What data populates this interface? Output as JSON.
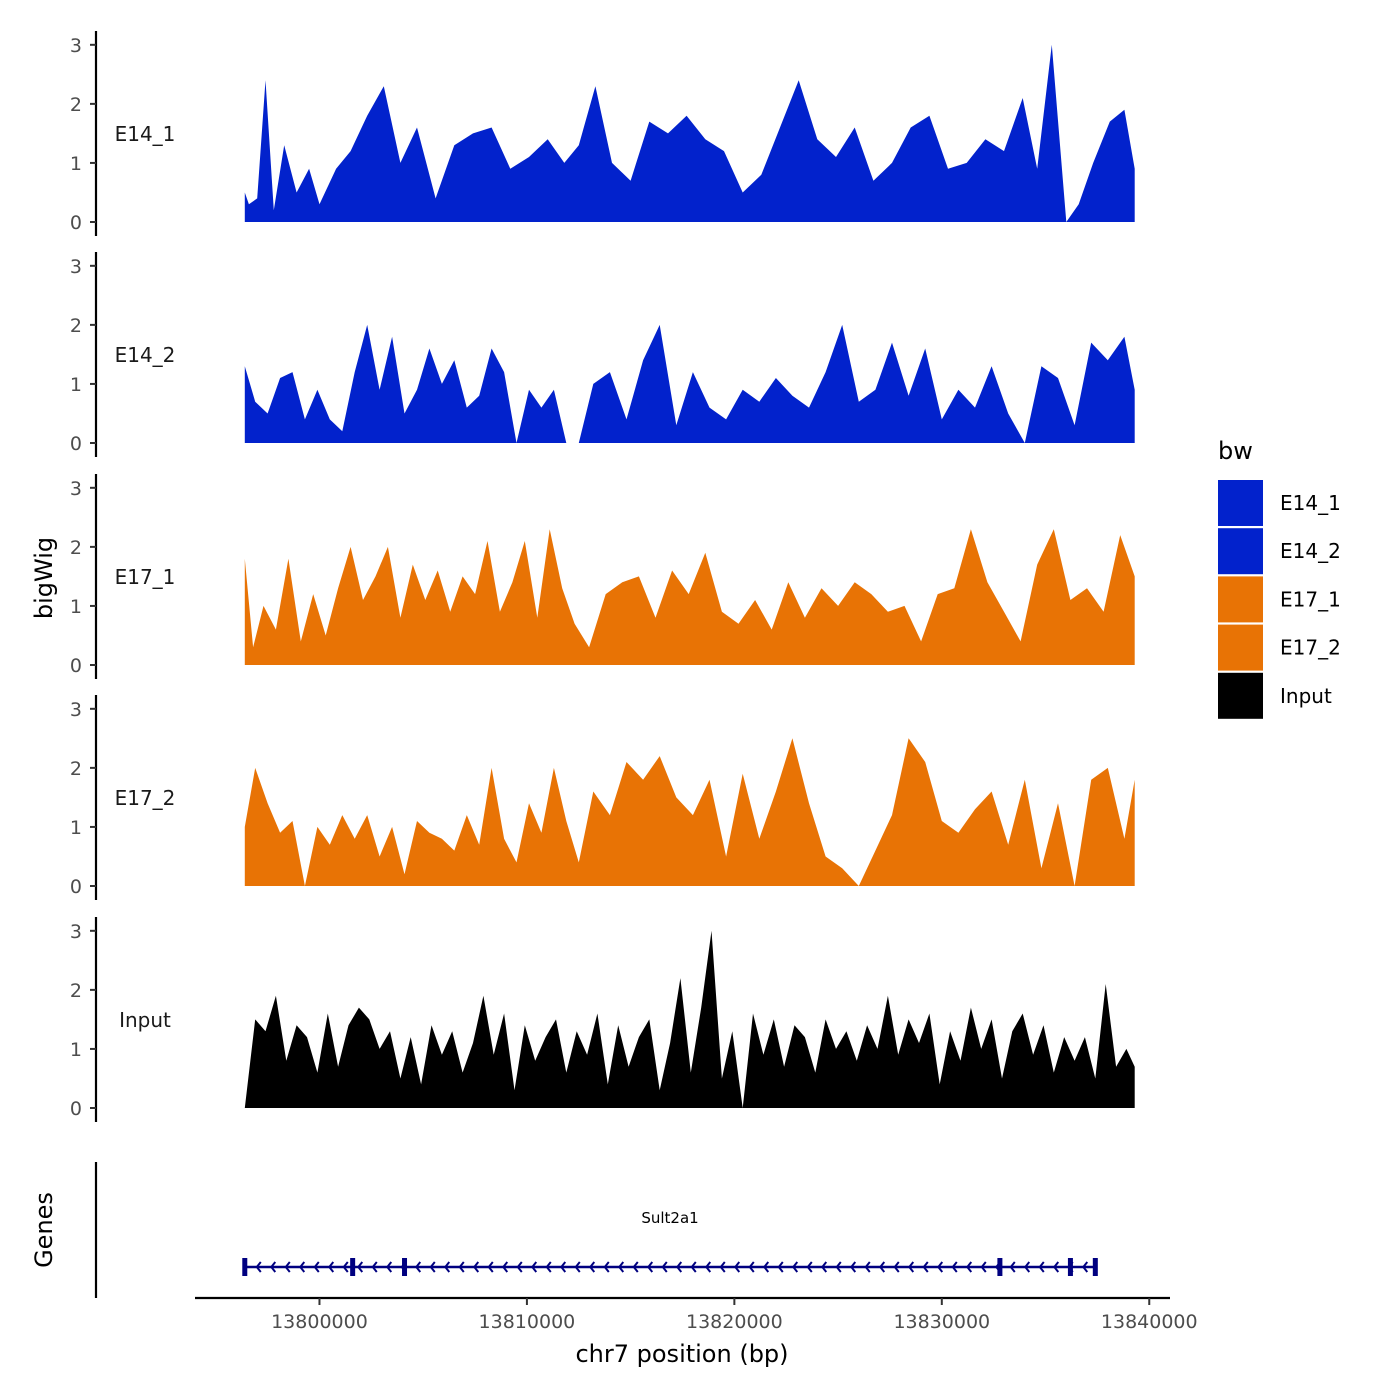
{
  "chart_data": {
    "type": "area",
    "chromosome": "chr7",
    "xlabel": "chr7 position (bp)",
    "ylabel": "bigWig",
    "genes_label": "Genes",
    "xlim": [
      13794000,
      13841000
    ],
    "x_ticks": [
      13800000,
      13810000,
      13820000,
      13830000,
      13840000
    ],
    "x_tick_labels": [
      "13800000",
      "13810000",
      "13820000",
      "13830000",
      "13840000"
    ],
    "ylim": [
      0,
      3.2
    ],
    "y_ticks": [
      0,
      1,
      2,
      3
    ],
    "y_tick_labels": [
      "0",
      "1",
      "2",
      "3"
    ],
    "legend": {
      "title": "bw",
      "entries": [
        {
          "label": "E14_1",
          "color": "#0222CC"
        },
        {
          "label": "E14_2",
          "color": "#0222CC"
        },
        {
          "label": "E17_1",
          "color": "#E87305"
        },
        {
          "label": "E17_2",
          "color": "#E87305"
        },
        {
          "label": "Input",
          "color": "#000000"
        }
      ]
    },
    "series": [
      {
        "name": "E14_1",
        "color": "#0222CC",
        "x": [
          13796400,
          13796600,
          13797000,
          13797400,
          13797800,
          13798300,
          13798900,
          13799500,
          13800000,
          13800800,
          13801500,
          13802300,
          13803100,
          13803900,
          13804700,
          13805600,
          13806500,
          13807400,
          13808300,
          13809200,
          13810100,
          13811000,
          13811800,
          13812500,
          13813300,
          13814100,
          13815000,
          13815900,
          13816800,
          13817700,
          13818600,
          13819500,
          13820400,
          13821300,
          13822200,
          13823100,
          13824000,
          13824900,
          13825800,
          13826700,
          13827600,
          13828500,
          13829400,
          13830300,
          13831200,
          13832100,
          13833000,
          13833900,
          13834600,
          13835300,
          13836000,
          13836600,
          13837300,
          13838100,
          13838800,
          13839300
        ],
        "y": [
          0.5,
          0.3,
          0.4,
          2.4,
          0.2,
          1.3,
          0.5,
          0.9,
          0.3,
          0.9,
          1.2,
          1.8,
          2.3,
          1.0,
          1.6,
          0.4,
          1.3,
          1.5,
          1.6,
          0.9,
          1.1,
          1.4,
          1.0,
          1.3,
          2.3,
          1.0,
          0.7,
          1.7,
          1.5,
          1.8,
          1.4,
          1.2,
          0.5,
          0.8,
          1.6,
          2.4,
          1.4,
          1.1,
          1.6,
          0.7,
          1.0,
          1.6,
          1.8,
          0.9,
          1.0,
          1.4,
          1.2,
          2.1,
          0.9,
          3.0,
          0.0,
          0.3,
          1.0,
          1.7,
          1.9,
          0.9
        ]
      },
      {
        "name": "E14_2",
        "color": "#0222CC",
        "x": [
          13796400,
          13796900,
          13797500,
          13798100,
          13798700,
          13799300,
          13799900,
          13800500,
          13801100,
          13801700,
          13802300,
          13802900,
          13803500,
          13804100,
          13804700,
          13805300,
          13805900,
          13806500,
          13807100,
          13807700,
          13808300,
          13808900,
          13809500,
          13810100,
          13810700,
          13811300,
          13811900,
          13812500,
          13813200,
          13814000,
          13814800,
          13815600,
          13816400,
          13817200,
          13818000,
          13818800,
          13819600,
          13820400,
          13821200,
          13822000,
          13822800,
          13823600,
          13824400,
          13825200,
          13826000,
          13826800,
          13827600,
          13828400,
          13829200,
          13830000,
          13830800,
          13831600,
          13832400,
          13833200,
          13834000,
          13834800,
          13835600,
          13836400,
          13837200,
          13838000,
          13838800,
          13839300
        ],
        "y": [
          1.3,
          0.7,
          0.5,
          1.1,
          1.2,
          0.4,
          0.9,
          0.4,
          0.2,
          1.2,
          2.0,
          0.9,
          1.8,
          0.5,
          0.9,
          1.6,
          1.0,
          1.4,
          0.6,
          0.8,
          1.6,
          1.2,
          0.0,
          0.9,
          0.6,
          0.9,
          0.0,
          0.0,
          1.0,
          1.2,
          0.4,
          1.4,
          2.0,
          0.3,
          1.2,
          0.6,
          0.4,
          0.9,
          0.7,
          1.1,
          0.8,
          0.6,
          1.2,
          2.0,
          0.7,
          0.9,
          1.7,
          0.8,
          1.6,
          0.4,
          0.9,
          0.6,
          1.3,
          0.5,
          0.0,
          1.3,
          1.1,
          0.3,
          1.7,
          1.4,
          1.8,
          0.9
        ]
      },
      {
        "name": "E17_1",
        "color": "#E87305",
        "x": [
          13796400,
          13796800,
          13797300,
          13797900,
          13798500,
          13799100,
          13799700,
          13800300,
          13800900,
          13801500,
          13802100,
          13802700,
          13803300,
          13803900,
          13804500,
          13805100,
          13805700,
          13806300,
          13806900,
          13807500,
          13808100,
          13808700,
          13809300,
          13809900,
          13810500,
          13811100,
          13811700,
          13812300,
          13813000,
          13813800,
          13814600,
          13815400,
          13816200,
          13817000,
          13817800,
          13818600,
          13819400,
          13820200,
          13821000,
          13821800,
          13822600,
          13823400,
          13824200,
          13825000,
          13825800,
          13826600,
          13827400,
          13828200,
          13829000,
          13829800,
          13830600,
          13831400,
          13832200,
          13833000,
          13833800,
          13834600,
          13835400,
          13836200,
          13837000,
          13837800,
          13838600,
          13839300
        ],
        "y": [
          1.8,
          0.3,
          1.0,
          0.6,
          1.8,
          0.4,
          1.2,
          0.5,
          1.3,
          2.0,
          1.1,
          1.5,
          2.0,
          0.8,
          1.7,
          1.1,
          1.6,
          0.9,
          1.5,
          1.2,
          2.1,
          0.9,
          1.4,
          2.1,
          0.8,
          2.3,
          1.3,
          0.7,
          0.3,
          1.2,
          1.4,
          1.5,
          0.8,
          1.6,
          1.2,
          1.9,
          0.9,
          0.7,
          1.1,
          0.6,
          1.4,
          0.8,
          1.3,
          1.0,
          1.4,
          1.2,
          0.9,
          1.0,
          0.4,
          1.2,
          1.3,
          2.3,
          1.4,
          0.9,
          0.4,
          1.7,
          2.3,
          1.1,
          1.3,
          0.9,
          2.2,
          1.5
        ]
      },
      {
        "name": "E17_2",
        "color": "#E87305",
        "x": [
          13796400,
          13796900,
          13797500,
          13798100,
          13798700,
          13799300,
          13799900,
          13800500,
          13801100,
          13801700,
          13802300,
          13802900,
          13803500,
          13804100,
          13804700,
          13805300,
          13805900,
          13806500,
          13807100,
          13807700,
          13808300,
          13808900,
          13809500,
          13810100,
          13810700,
          13811300,
          13811900,
          13812500,
          13813200,
          13814000,
          13814800,
          13815600,
          13816400,
          13817200,
          13818000,
          13818800,
          13819600,
          13820400,
          13821200,
          13822000,
          13822800,
          13823600,
          13824400,
          13825200,
          13826000,
          13826800,
          13827600,
          13828400,
          13829200,
          13830000,
          13830800,
          13831600,
          13832400,
          13833200,
          13834000,
          13834800,
          13835600,
          13836400,
          13837200,
          13838000,
          13838800,
          13839300
        ],
        "y": [
          1.0,
          2.0,
          1.4,
          0.9,
          1.1,
          0.0,
          1.0,
          0.7,
          1.2,
          0.8,
          1.2,
          0.5,
          1.0,
          0.2,
          1.1,
          0.9,
          0.8,
          0.6,
          1.2,
          0.7,
          2.0,
          0.8,
          0.4,
          1.4,
          0.9,
          2.0,
          1.1,
          0.4,
          1.6,
          1.2,
          2.1,
          1.8,
          2.2,
          1.5,
          1.2,
          1.8,
          0.5,
          1.9,
          0.8,
          1.6,
          2.5,
          1.4,
          0.5,
          0.3,
          0.0,
          0.6,
          1.2,
          2.5,
          2.1,
          1.1,
          0.9,
          1.3,
          1.6,
          0.7,
          1.8,
          0.3,
          1.4,
          0.0,
          1.8,
          2.0,
          0.8,
          1.8
        ]
      },
      {
        "name": "Input",
        "color": "#000000",
        "x": [
          13796400,
          13796900,
          13797400,
          13797900,
          13798400,
          13798900,
          13799400,
          13799900,
          13800400,
          13800900,
          13801400,
          13801900,
          13802400,
          13802900,
          13803400,
          13803900,
          13804400,
          13804900,
          13805400,
          13805900,
          13806400,
          13806900,
          13807400,
          13807900,
          13808400,
          13808900,
          13809400,
          13809900,
          13810400,
          13810900,
          13811400,
          13811900,
          13812400,
          13812900,
          13813400,
          13813900,
          13814400,
          13814900,
          13815400,
          13815900,
          13816400,
          13816900,
          13817400,
          13817900,
          13818400,
          13818900,
          13819400,
          13819900,
          13820400,
          13820900,
          13821400,
          13821900,
          13822400,
          13822900,
          13823400,
          13823900,
          13824400,
          13824900,
          13825400,
          13825900,
          13826400,
          13826900,
          13827400,
          13827900,
          13828400,
          13828900,
          13829400,
          13829900,
          13830400,
          13830900,
          13831400,
          13831900,
          13832400,
          13832900,
          13833400,
          13833900,
          13834400,
          13834900,
          13835400,
          13835900,
          13836400,
          13836900,
          13837400,
          13837900,
          13838400,
          13838900,
          13839300
        ],
        "y": [
          0.0,
          1.5,
          1.3,
          1.9,
          0.8,
          1.4,
          1.2,
          0.6,
          1.6,
          0.7,
          1.4,
          1.7,
          1.5,
          1.0,
          1.3,
          0.5,
          1.2,
          0.4,
          1.4,
          0.9,
          1.3,
          0.6,
          1.1,
          1.9,
          0.9,
          1.6,
          0.3,
          1.4,
          0.8,
          1.2,
          1.5,
          0.6,
          1.3,
          0.9,
          1.6,
          0.4,
          1.4,
          0.7,
          1.2,
          1.5,
          0.3,
          1.1,
          2.2,
          0.6,
          1.7,
          3.0,
          0.5,
          1.3,
          0.0,
          1.6,
          0.9,
          1.5,
          0.7,
          1.4,
          1.2,
          0.6,
          1.5,
          1.0,
          1.3,
          0.8,
          1.4,
          1.0,
          1.9,
          0.9,
          1.5,
          1.1,
          1.6,
          0.4,
          1.3,
          0.8,
          1.7,
          1.0,
          1.5,
          0.5,
          1.3,
          1.6,
          0.9,
          1.4,
          0.6,
          1.2,
          0.8,
          1.2,
          0.5,
          2.1,
          0.7,
          1.0,
          0.7
        ]
      }
    ],
    "gene_track": {
      "genes": [
        {
          "name": "Sult2a1",
          "start": 13796400,
          "end": 13837400,
          "strand": "-",
          "color": "#000080",
          "exons": [
            13796400,
            13801600,
            13804100,
            13832800,
            13836200,
            13837400
          ]
        }
      ]
    }
  }
}
